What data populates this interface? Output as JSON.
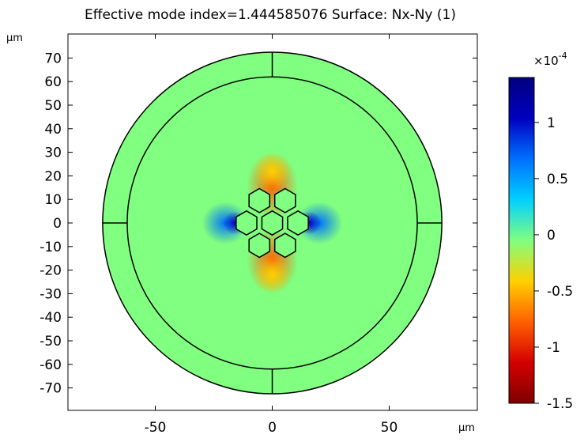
{
  "chart_data": {
    "type": "heatmap",
    "title": "Effective mode index=1.444585076  Surface: Nx-Ny (1)",
    "x_unit": "µm",
    "y_unit": "µm",
    "xlim": [
      -85,
      85
    ],
    "ylim": [
      -80,
      80
    ],
    "x_ticks": [
      -50,
      0,
      50
    ],
    "y_ticks": [
      70,
      60,
      50,
      40,
      30,
      20,
      10,
      0,
      -10,
      -20,
      -30,
      -40,
      -50,
      -60,
      -70
    ],
    "domain": {
      "cladding_outer_radius": 72.5,
      "cladding_inner_radius": 62,
      "background_value": -0.2,
      "hexagon_circumradius": 5.1,
      "hexagon_centers": [
        [
          -5.5,
          9.5
        ],
        [
          5.5,
          9.5
        ],
        [
          -11,
          0
        ],
        [
          0,
          0
        ],
        [
          11,
          0
        ],
        [
          -5.5,
          -9.5
        ],
        [
          5.5,
          -9.5
        ]
      ]
    },
    "colorbar": {
      "exponent_label": "×10",
      "exponent": "-4",
      "min": -1.5,
      "max": 1.4,
      "ticks": [
        1,
        0.5,
        0,
        -0.5,
        -1,
        -1.5
      ],
      "tick_labels": [
        "1",
        "0.5",
        "0",
        "-0.5",
        "-1",
        "-1.5"
      ],
      "colormap": [
        "#7f0000",
        "#d40000",
        "#ff6000",
        "#ffd000",
        "#80ff80",
        "#00d0ff",
        "#0070ff",
        "#0000c0",
        "#000080"
      ]
    }
  }
}
